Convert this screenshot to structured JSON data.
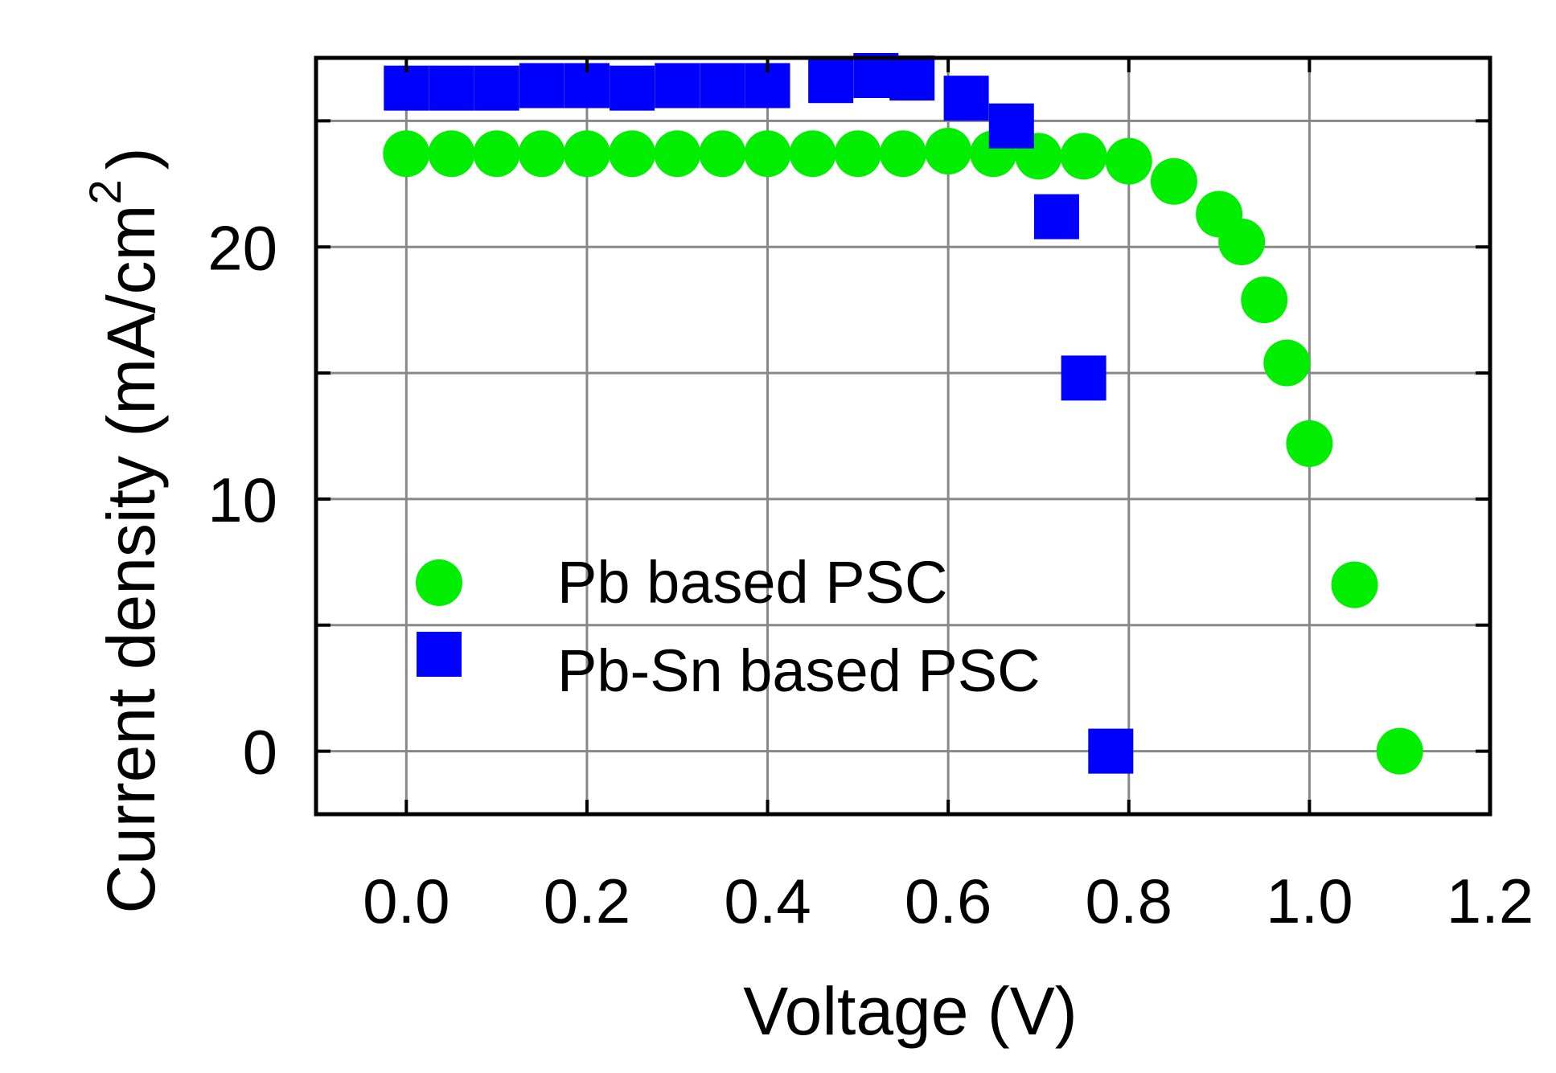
{
  "chart_data": {
    "type": "scatter",
    "title": "",
    "xlabel": "Voltage (V)",
    "ylabel": "Current density (mA/cm",
    "ylabel_superscript": "2",
    "ylabel_suffix": ")",
    "xlim": [
      -0.1,
      1.2
    ],
    "ylim": [
      -2.5,
      27.5
    ],
    "x_ticks": [
      0.0,
      0.2,
      0.4,
      0.6,
      0.8,
      1.0,
      1.2
    ],
    "x_tick_labels": [
      "0.0",
      "0.2",
      "0.4",
      "0.6",
      "0.8",
      "1.0",
      "1.2"
    ],
    "y_ticks": [
      0,
      10,
      20
    ],
    "y_tick_labels": [
      "0",
      "10",
      "20"
    ],
    "y_minor_ticks": [
      5,
      15,
      25
    ],
    "grid": true,
    "legend_position": "lower-left",
    "series": [
      {
        "name": "Pb based PSC",
        "marker": "circle",
        "color": "#00ee00",
        "x": [
          0.0,
          0.05,
          0.1,
          0.15,
          0.2,
          0.25,
          0.3,
          0.35,
          0.4,
          0.45,
          0.5,
          0.55,
          0.6,
          0.65,
          0.7,
          0.75,
          0.8,
          0.85,
          0.9,
          0.925,
          0.95,
          0.975,
          1.0,
          1.05,
          1.1
        ],
        "y": [
          23.7,
          23.7,
          23.7,
          23.7,
          23.7,
          23.7,
          23.7,
          23.7,
          23.7,
          23.7,
          23.7,
          23.7,
          23.8,
          23.7,
          23.6,
          23.6,
          23.4,
          22.6,
          21.3,
          20.2,
          17.9,
          15.4,
          12.2,
          6.6,
          0.0
        ]
      },
      {
        "name": "Pb-Sn based PSC",
        "marker": "square",
        "color": "#0000ff",
        "x": [
          0.0,
          0.05,
          0.1,
          0.15,
          0.2,
          0.25,
          0.3,
          0.35,
          0.4,
          0.47,
          0.52,
          0.56,
          0.62,
          0.67,
          0.72,
          0.75,
          0.78
        ],
        "y": [
          26.3,
          26.3,
          26.3,
          26.4,
          26.4,
          26.3,
          26.4,
          26.4,
          26.4,
          26.6,
          26.8,
          26.7,
          25.9,
          24.8,
          21.2,
          14.8,
          0.0
        ]
      }
    ]
  }
}
